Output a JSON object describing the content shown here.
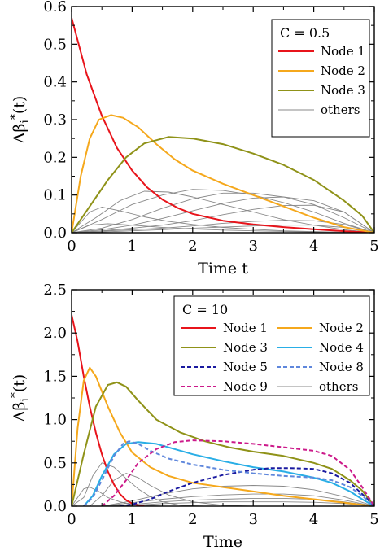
{
  "chart_data": [
    {
      "type": "line",
      "annotation": "C = 0.5",
      "xlabel": "Time t",
      "ylabel": "Δβ_i^*(t)",
      "xlim": [
        0,
        5
      ],
      "ylim": [
        0,
        0.6
      ],
      "x_ticks": [
        "0",
        "1",
        "2",
        "3",
        "4",
        "5"
      ],
      "y_ticks": [
        "0.0",
        "0.1",
        "0.2",
        "0.3",
        "0.4",
        "0.5",
        "0.6"
      ],
      "y_tick_values": [
        0,
        0.1,
        0.2,
        0.3,
        0.4,
        0.5,
        0.6
      ],
      "legend_position": "top-right",
      "series": [
        {
          "name": "Node 1",
          "color": "#e8141b",
          "dash": "solid",
          "x": [
            0,
            0.25,
            0.5,
            0.75,
            1,
            1.25,
            1.5,
            1.75,
            2,
            2.5,
            3,
            3.5,
            4,
            4.5,
            5
          ],
          "y": [
            0.57,
            0.42,
            0.31,
            0.225,
            0.165,
            0.12,
            0.088,
            0.066,
            0.05,
            0.032,
            0.022,
            0.015,
            0.009,
            0.004,
            0
          ]
        },
        {
          "name": "Node 2",
          "color": "#f5a81c",
          "dash": "solid",
          "x": [
            0,
            0.15,
            0.3,
            0.45,
            0.65,
            0.85,
            1.1,
            1.4,
            1.7,
            2,
            2.5,
            3,
            3.5,
            4,
            4.5,
            5
          ],
          "y": [
            0,
            0.15,
            0.25,
            0.3,
            0.312,
            0.305,
            0.28,
            0.235,
            0.195,
            0.165,
            0.13,
            0.1,
            0.07,
            0.04,
            0.015,
            0
          ]
        },
        {
          "name": "Node 3",
          "color": "#8f9218",
          "dash": "solid",
          "x": [
            0,
            0.3,
            0.6,
            0.9,
            1.2,
            1.6,
            2,
            2.5,
            3,
            3.5,
            4,
            4.5,
            4.8,
            5
          ],
          "y": [
            0,
            0.07,
            0.14,
            0.2,
            0.237,
            0.254,
            0.25,
            0.235,
            0.21,
            0.18,
            0.14,
            0.085,
            0.045,
            0
          ]
        },
        {
          "name": "others",
          "color": "#888888",
          "dash": "solid",
          "x": [
            0,
            0.3,
            0.5,
            0.8,
            1.2,
            1.6,
            2,
            2.5,
            3,
            3.5,
            4,
            4.5,
            5
          ],
          "y": [
            0,
            0.055,
            0.068,
            0.058,
            0.042,
            0.03,
            0.022,
            0.014,
            0.009,
            0.005,
            0.003,
            0.001,
            0
          ]
        }
      ],
      "extra_series": [
        {
          "color": "#888888",
          "x": [
            0,
            0.4,
            0.8,
            1.2,
            1.6,
            2,
            2.5,
            3,
            3.5,
            4,
            4.5,
            5
          ],
          "y": [
            0,
            0.04,
            0.085,
            0.11,
            0.108,
            0.095,
            0.075,
            0.055,
            0.035,
            0.02,
            0.008,
            0
          ]
        },
        {
          "color": "#888888",
          "x": [
            0,
            0.5,
            1,
            1.5,
            2,
            2.5,
            3,
            3.5,
            4,
            4.5,
            5
          ],
          "y": [
            0,
            0.035,
            0.075,
            0.1,
            0.115,
            0.112,
            0.1,
            0.08,
            0.055,
            0.025,
            0
          ]
        },
        {
          "color": "#888888",
          "x": [
            0,
            0.5,
            1,
            1.5,
            2,
            2.5,
            3,
            3.5,
            4,
            4.5,
            5
          ],
          "y": [
            0,
            0.012,
            0.035,
            0.065,
            0.09,
            0.105,
            0.105,
            0.095,
            0.075,
            0.04,
            0
          ]
        },
        {
          "color": "#888888",
          "x": [
            0,
            0.5,
            1,
            1.5,
            2,
            2.5,
            3,
            3.5,
            4,
            4.5,
            5
          ],
          "y": [
            0,
            0.008,
            0.02,
            0.038,
            0.058,
            0.078,
            0.092,
            0.095,
            0.085,
            0.055,
            0
          ]
        },
        {
          "color": "#888888",
          "x": [
            0,
            0.5,
            1,
            1.5,
            2,
            2.5,
            3,
            3.5,
            4,
            4.5,
            5
          ],
          "y": [
            0,
            0.005,
            0.012,
            0.02,
            0.032,
            0.048,
            0.062,
            0.072,
            0.073,
            0.055,
            0
          ]
        },
        {
          "color": "#888888",
          "x": [
            0,
            0.5,
            1,
            1.5,
            2,
            2.5,
            3,
            3.5,
            4,
            4.5,
            5
          ],
          "y": [
            0,
            0.004,
            0.008,
            0.012,
            0.018,
            0.025,
            0.03,
            0.033,
            0.032,
            0.022,
            0
          ]
        },
        {
          "color": "#888888",
          "x": [
            0,
            0.5,
            1,
            1.5,
            2,
            2.5,
            3,
            3.5,
            4,
            4.5,
            5
          ],
          "y": [
            0,
            0.002,
            0.005,
            0.008,
            0.012,
            0.015,
            0.018,
            0.02,
            0.02,
            0.014,
            0
          ]
        },
        {
          "color": "#888888",
          "x": [
            0,
            0.3,
            0.6,
            1,
            1.5,
            2,
            2.5,
            3,
            4,
            5
          ],
          "y": [
            0,
            0.02,
            0.024,
            0.02,
            0.014,
            0.01,
            0.007,
            0.005,
            0.002,
            0
          ]
        }
      ]
    },
    {
      "type": "line",
      "annotation": "C = 10",
      "xlabel": "Time",
      "ylabel": "Δβ_i^*(t)",
      "xlim": [
        0,
        5
      ],
      "ylim": [
        0,
        2.5
      ],
      "x_ticks": [
        "0",
        "1",
        "2",
        "3",
        "4",
        "5"
      ],
      "y_ticks": [
        "0.0",
        "0.5",
        "1.0",
        "1.5",
        "2.0",
        "2.5"
      ],
      "y_tick_values": [
        0,
        0.5,
        1.0,
        1.5,
        2.0,
        2.5
      ],
      "legend_position": "top-right",
      "series": [
        {
          "name": "Node 1",
          "color": "#e8141b",
          "dash": "solid",
          "x": [
            0,
            0.1,
            0.2,
            0.3,
            0.4,
            0.5,
            0.6,
            0.7,
            0.8,
            0.9,
            1,
            1.1,
            1.2
          ],
          "y": [
            2.21,
            1.9,
            1.5,
            1.15,
            0.85,
            0.6,
            0.4,
            0.25,
            0.14,
            0.07,
            0.03,
            0.01,
            0
          ]
        },
        {
          "name": "Node 2",
          "color": "#f5a81c",
          "dash": "solid",
          "x": [
            0,
            0.1,
            0.2,
            0.3,
            0.4,
            0.6,
            0.8,
            1,
            1.3,
            1.6,
            2,
            2.5,
            3,
            3.5,
            4,
            4.5,
            5
          ],
          "y": [
            0,
            0.9,
            1.45,
            1.6,
            1.5,
            1.15,
            0.85,
            0.62,
            0.45,
            0.35,
            0.27,
            0.22,
            0.17,
            0.12,
            0.08,
            0.04,
            0
          ]
        },
        {
          "name": "Node 3",
          "color": "#8f9218",
          "dash": "solid",
          "x": [
            0,
            0.2,
            0.4,
            0.6,
            0.75,
            0.9,
            1.1,
            1.4,
            1.8,
            2.2,
            2.6,
            3,
            3.5,
            4,
            4.3,
            4.6,
            4.8,
            5
          ],
          "y": [
            0,
            0.6,
            1.15,
            1.4,
            1.43,
            1.38,
            1.22,
            1.0,
            0.85,
            0.75,
            0.68,
            0.63,
            0.58,
            0.5,
            0.43,
            0.3,
            0.18,
            0
          ]
        },
        {
          "name": "Node 4",
          "color": "#29aee6",
          "dash": "solid",
          "x": [
            0.2,
            0.35,
            0.5,
            0.7,
            0.9,
            1.1,
            1.4,
            1.7,
            2,
            2.5,
            3,
            3.5,
            4,
            4.3,
            4.6,
            4.8,
            5
          ],
          "y": [
            0,
            0.12,
            0.35,
            0.6,
            0.72,
            0.74,
            0.72,
            0.66,
            0.6,
            0.52,
            0.45,
            0.4,
            0.33,
            0.27,
            0.17,
            0.08,
            0
          ]
        },
        {
          "name": "Node 5",
          "color": "#1a1aa0",
          "dash": "dash",
          "x": [
            0.8,
            1,
            1.3,
            1.6,
            2,
            2.5,
            3,
            3.3,
            3.6,
            4,
            4.3,
            4.6,
            4.8,
            5
          ],
          "y": [
            0,
            0.02,
            0.08,
            0.17,
            0.27,
            0.36,
            0.42,
            0.44,
            0.44,
            0.43,
            0.38,
            0.27,
            0.14,
            0
          ]
        },
        {
          "name": "Node 8",
          "color": "#5f87dc",
          "dash": "dash",
          "x": [
            0.2,
            0.35,
            0.5,
            0.7,
            0.85,
            0.95,
            1.1,
            1.3,
            1.6,
            2,
            2.5,
            3,
            3.5,
            4,
            4.3,
            4.6,
            4.8,
            5
          ],
          "y": [
            0,
            0.1,
            0.3,
            0.58,
            0.72,
            0.75,
            0.72,
            0.64,
            0.55,
            0.48,
            0.42,
            0.38,
            0.35,
            0.33,
            0.3,
            0.22,
            0.12,
            0
          ]
        },
        {
          "name": "Node 9",
          "color": "#cc1a8a",
          "dash": "dash",
          "x": [
            0.5,
            0.7,
            0.9,
            1.1,
            1.4,
            1.7,
            2,
            2.5,
            3,
            3.5,
            4,
            4.3,
            4.6,
            4.8,
            5
          ],
          "y": [
            0,
            0.12,
            0.3,
            0.5,
            0.66,
            0.74,
            0.76,
            0.75,
            0.72,
            0.68,
            0.64,
            0.58,
            0.42,
            0.22,
            0
          ]
        },
        {
          "name": "others",
          "color": "#888888",
          "dash": "solid",
          "x": [
            0,
            0.2,
            0.35,
            0.5,
            0.7,
            0.9,
            1.1,
            1.3,
            1.5,
            1.8,
            2.2
          ],
          "y": [
            0,
            0.1,
            0.35,
            0.5,
            0.45,
            0.32,
            0.2,
            0.11,
            0.05,
            0.01,
            0
          ]
        }
      ],
      "extra_series": [
        {
          "color": "#888888",
          "x": [
            0,
            0.1,
            0.2,
            0.3,
            0.45,
            0.6,
            0.8,
            1,
            1.2,
            1.5,
            2
          ],
          "y": [
            0,
            0.1,
            0.2,
            0.22,
            0.17,
            0.1,
            0.05,
            0.02,
            0.01,
            0,
            0
          ]
        },
        {
          "color": "#888888",
          "x": [
            0.3,
            0.5,
            0.7,
            0.9,
            1.1,
            1.3,
            1.6,
            2,
            2.5,
            3
          ],
          "y": [
            0,
            0.12,
            0.3,
            0.38,
            0.33,
            0.24,
            0.13,
            0.05,
            0.01,
            0
          ]
        },
        {
          "color": "#888888",
          "x": [
            0.5,
            1,
            1.5,
            2,
            2.5,
            3,
            3.5,
            4,
            4.5,
            5
          ],
          "y": [
            0,
            0.06,
            0.14,
            0.2,
            0.23,
            0.24,
            0.23,
            0.19,
            0.11,
            0
          ]
        },
        {
          "color": "#888888",
          "x": [
            0.5,
            1,
            1.5,
            2,
            2.5,
            3,
            3.5,
            4,
            4.5,
            5
          ],
          "y": [
            0,
            0.04,
            0.08,
            0.11,
            0.13,
            0.14,
            0.14,
            0.12,
            0.07,
            0
          ]
        },
        {
          "color": "#888888",
          "x": [
            0.5,
            1,
            1.5,
            2,
            2.5,
            3,
            3.5,
            4,
            4.5,
            5
          ],
          "y": [
            0,
            0.02,
            0.05,
            0.07,
            0.08,
            0.09,
            0.09,
            0.08,
            0.05,
            0
          ]
        },
        {
          "color": "#888888",
          "x": [
            0.5,
            1,
            1.5,
            2,
            2.5,
            3,
            3.5,
            4,
            4.5,
            5
          ],
          "y": [
            0,
            0.01,
            0.03,
            0.04,
            0.05,
            0.05,
            0.05,
            0.045,
            0.03,
            0
          ]
        }
      ]
    }
  ]
}
